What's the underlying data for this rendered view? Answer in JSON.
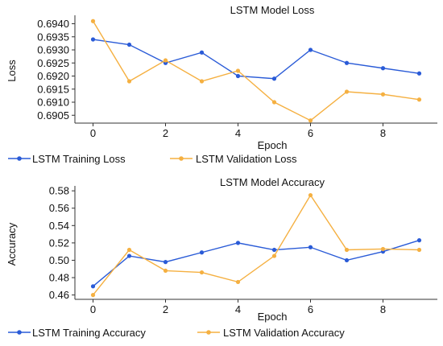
{
  "colors": {
    "training": "#2a5bd7",
    "validation": "#f5b041"
  },
  "chart_data": [
    {
      "type": "line",
      "title": "LSTM Model Loss",
      "xlabel": "Epoch",
      "ylabel": "Loss",
      "x": [
        0,
        1,
        2,
        3,
        4,
        5,
        6,
        7,
        8,
        9
      ],
      "xticks": [
        "0",
        "2",
        "4",
        "6",
        "8"
      ],
      "xtick_values": [
        0,
        2,
        4,
        6,
        8
      ],
      "xlim": [
        -0.5,
        9.5
      ],
      "ylim": [
        0.6902,
        0.6942
      ],
      "yticks": [
        "0.6905",
        "0.6910",
        "0.6915",
        "0.6920",
        "0.6925",
        "0.6930",
        "0.6935",
        "0.6940"
      ],
      "ytick_values": [
        0.6905,
        0.691,
        0.6915,
        0.692,
        0.6925,
        0.693,
        0.6935,
        0.694
      ],
      "series": [
        {
          "name": "LSTM Training Loss",
          "color_key": "training",
          "values": [
            0.6934,
            0.6932,
            0.6925,
            0.6929,
            0.692,
            0.6919,
            0.693,
            0.6925,
            0.6923,
            0.6921
          ]
        },
        {
          "name": "LSTM Validation Loss",
          "color_key": "validation",
          "values": [
            0.6941,
            0.6918,
            0.6926,
            0.6918,
            0.6922,
            0.691,
            0.6903,
            0.6914,
            0.6913,
            0.6911
          ]
        }
      ],
      "legend": "bottom",
      "grid": false
    },
    {
      "type": "line",
      "title": "LSTM Model Accuracy",
      "xlabel": "Epoch",
      "ylabel": "Accuracy",
      "x": [
        0,
        1,
        2,
        3,
        4,
        5,
        6,
        7,
        8,
        9
      ],
      "xticks": [
        "0",
        "2",
        "4",
        "6",
        "8"
      ],
      "xtick_values": [
        0,
        2,
        4,
        6,
        8
      ],
      "xlim": [
        -0.5,
        9.5
      ],
      "ylim": [
        0.455,
        0.582
      ],
      "yticks": [
        "0.46",
        "0.48",
        "0.50",
        "0.52",
        "0.54",
        "0.56",
        "0.58"
      ],
      "ytick_values": [
        0.46,
        0.48,
        0.5,
        0.52,
        0.54,
        0.56,
        0.58
      ],
      "series": [
        {
          "name": "LSTM Training Accuracy",
          "color_key": "training",
          "values": [
            0.47,
            0.505,
            0.498,
            0.509,
            0.52,
            0.512,
            0.515,
            0.5,
            0.51,
            0.523
          ]
        },
        {
          "name": "LSTM Validation Accuracy",
          "color_key": "validation",
          "values": [
            0.46,
            0.512,
            0.488,
            0.486,
            0.475,
            0.505,
            0.575,
            0.512,
            0.513,
            0.512
          ]
        }
      ],
      "legend": "bottom",
      "grid": false
    }
  ]
}
